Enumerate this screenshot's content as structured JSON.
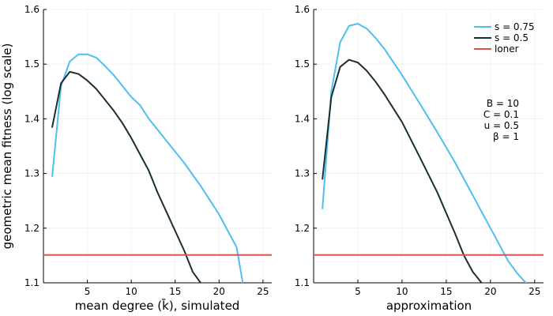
{
  "chart_data": [
    {
      "type": "line",
      "xlabel": "mean degree (k̄), simulated",
      "ylabel": "geometric mean fitness (log scale)",
      "xlim": [
        0,
        26
      ],
      "ylim": [
        1.1,
        1.6
      ],
      "xticks": [
        5,
        10,
        15,
        20,
        25
      ],
      "yticks": [
        1.1,
        1.2,
        1.3,
        1.4,
        1.5,
        1.6
      ],
      "xtick_labels": [
        "5",
        "10",
        "15",
        "20",
        "25"
      ],
      "ytick_labels": [
        "1.1",
        "1.2",
        "1.3",
        "1.4",
        "1.5",
        "1.6"
      ],
      "grid": true,
      "series": [
        {
          "name": "s = 0.75",
          "color": "#4fbfef",
          "x": [
            1,
            2,
            3,
            4,
            5,
            6,
            7,
            8,
            9,
            10,
            11,
            12,
            14,
            16,
            18,
            20,
            22,
            22.7
          ],
          "y": [
            1.295,
            1.46,
            1.505,
            1.518,
            1.518,
            1.512,
            1.497,
            1.48,
            1.46,
            1.44,
            1.425,
            1.4,
            1.36,
            1.32,
            1.275,
            1.225,
            1.165,
            1.1
          ]
        },
        {
          "name": "s = 0.5",
          "color": "#1b2f2f",
          "x": [
            1,
            2,
            3,
            4,
            5,
            6,
            7,
            8,
            9,
            10,
            12,
            13,
            14,
            16,
            17,
            17.9
          ],
          "y": [
            1.385,
            1.465,
            1.486,
            1.482,
            1.47,
            1.455,
            1.435,
            1.415,
            1.392,
            1.365,
            1.305,
            1.265,
            1.23,
            1.16,
            1.12,
            1.1
          ]
        },
        {
          "name": "loner",
          "color": "#d9534f",
          "x": [
            0,
            26
          ],
          "y": [
            1.151,
            1.151
          ]
        }
      ]
    },
    {
      "type": "line",
      "xlabel": "approximation",
      "ylabel": "",
      "xlim": [
        0,
        26
      ],
      "ylim": [
        1.1,
        1.6
      ],
      "xticks": [
        5,
        10,
        15,
        20,
        25
      ],
      "yticks": [
        1.1,
        1.2,
        1.3,
        1.4,
        1.5,
        1.6
      ],
      "xtick_labels": [
        "5",
        "10",
        "15",
        "20",
        "25"
      ],
      "ytick_labels": [
        "1.1",
        "1.2",
        "1.3",
        "1.4",
        "1.5",
        "1.6"
      ],
      "grid": true,
      "legend": {
        "placement": "top-right",
        "entries": [
          {
            "label": "s = 0.75",
            "color": "#4fbfef"
          },
          {
            "label": "s = 0.5",
            "color": "#1b2f2f"
          },
          {
            "label": "loner",
            "color": "#d9534f"
          }
        ]
      },
      "annotations": [
        "B = 10",
        "C = 0.1",
        "u = 0.5",
        "β = 1"
      ],
      "series": [
        {
          "name": "s = 0.75",
          "color": "#4fbfef",
          "x": [
            1,
            2,
            3,
            4,
            5,
            6,
            7,
            8,
            10,
            12,
            14,
            16,
            18,
            20,
            22,
            23,
            24
          ],
          "y": [
            1.236,
            1.45,
            1.54,
            1.57,
            1.574,
            1.565,
            1.548,
            1.528,
            1.48,
            1.428,
            1.375,
            1.32,
            1.26,
            1.2,
            1.14,
            1.118,
            1.1
          ]
        },
        {
          "name": "s = 0.5",
          "color": "#1b2f2f",
          "x": [
            1,
            2,
            3,
            4,
            5,
            6,
            7,
            8,
            10,
            12,
            14,
            16,
            17,
            18,
            19
          ],
          "y": [
            1.29,
            1.44,
            1.495,
            1.508,
            1.503,
            1.488,
            1.468,
            1.445,
            1.394,
            1.33,
            1.265,
            1.19,
            1.15,
            1.12,
            1.1
          ]
        },
        {
          "name": "loner",
          "color": "#d9534f",
          "x": [
            0,
            26
          ],
          "y": [
            1.151,
            1.151
          ]
        }
      ]
    }
  ]
}
